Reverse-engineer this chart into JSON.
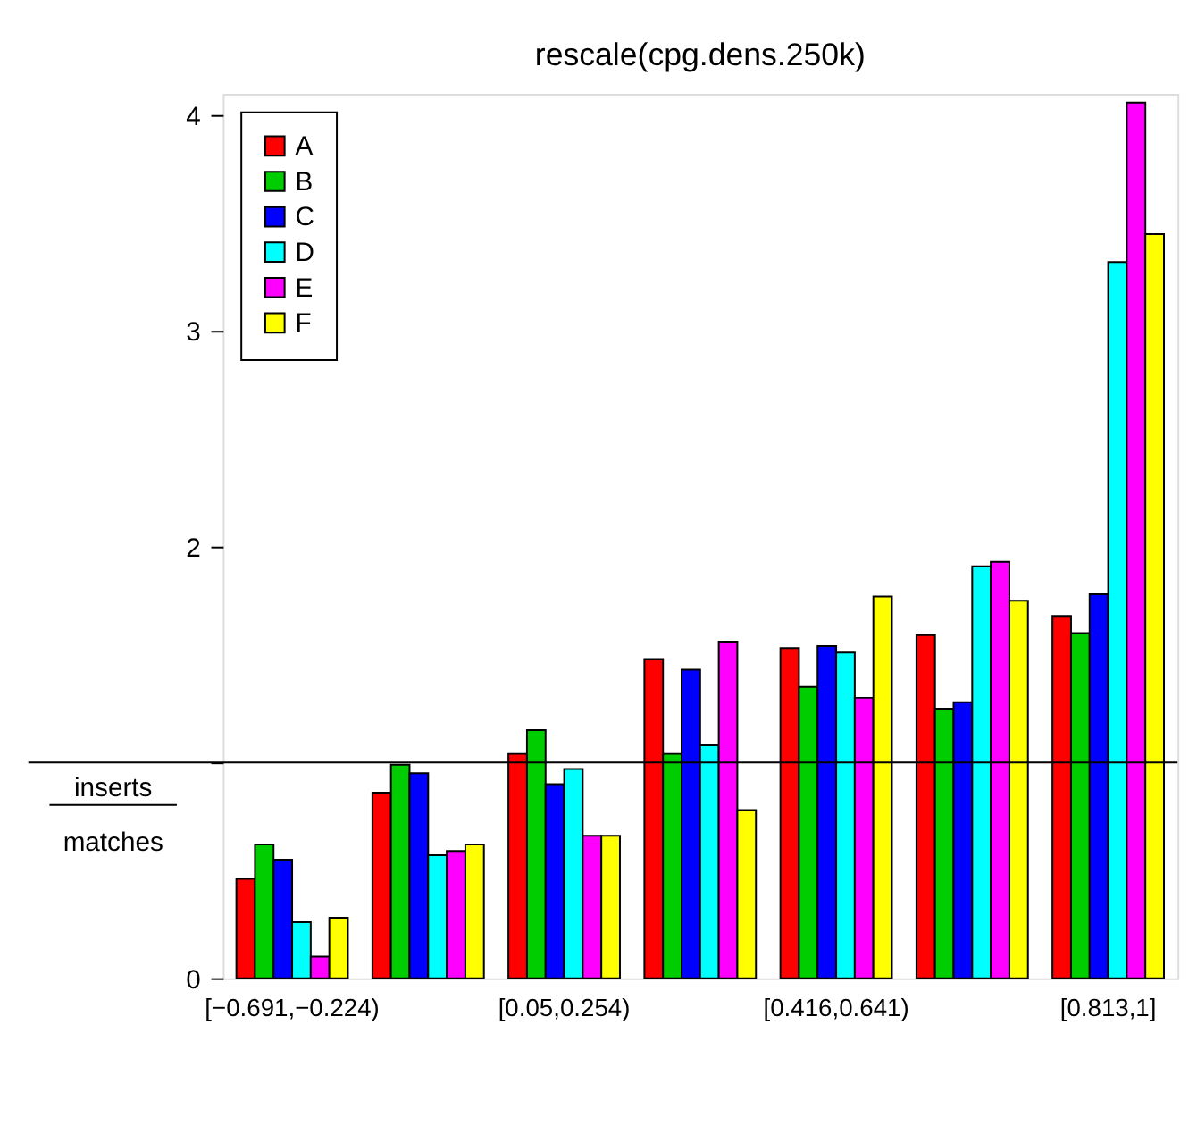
{
  "chart_data": {
    "type": "bar",
    "title": "rescale(cpg.dens.250k)",
    "categories": [
      "[−0.691,−0.224)",
      null,
      "[0.05,0.254)",
      null,
      "[0.416,0.641)",
      null,
      "[0.813,1]"
    ],
    "series": [
      {
        "name": "A",
        "color": "#ff0000",
        "values": [
          0.46,
          0.86,
          1.04,
          1.48,
          1.53,
          1.59,
          1.68
        ]
      },
      {
        "name": "B",
        "color": "#00cd00",
        "values": [
          0.62,
          0.99,
          1.15,
          1.04,
          1.35,
          1.25,
          1.6
        ]
      },
      {
        "name": "C",
        "color": "#0000ff",
        "values": [
          0.55,
          0.95,
          0.9,
          1.43,
          1.54,
          1.28,
          1.78
        ]
      },
      {
        "name": "D",
        "color": "#00ffff",
        "values": [
          0.26,
          0.57,
          0.97,
          1.08,
          1.51,
          1.91,
          3.32
        ]
      },
      {
        "name": "E",
        "color": "#ff00ff",
        "values": [
          0.1,
          0.59,
          0.66,
          1.56,
          1.3,
          1.93,
          4.06
        ]
      },
      {
        "name": "F",
        "color": "#ffff00",
        "values": [
          0.28,
          0.62,
          0.66,
          0.78,
          1.77,
          1.75,
          3.45
        ]
      }
    ],
    "ylim": [
      0,
      4.1
    ],
    "yticks": [
      0,
      {
        "value": 1,
        "label": null
      },
      2,
      3,
      4
    ],
    "grid": false,
    "legend": "top left",
    "ref_lines": [
      {
        "axis": "y",
        "value": 1
      }
    ],
    "annotations": [
      "inserts",
      "matches"
    ]
  }
}
